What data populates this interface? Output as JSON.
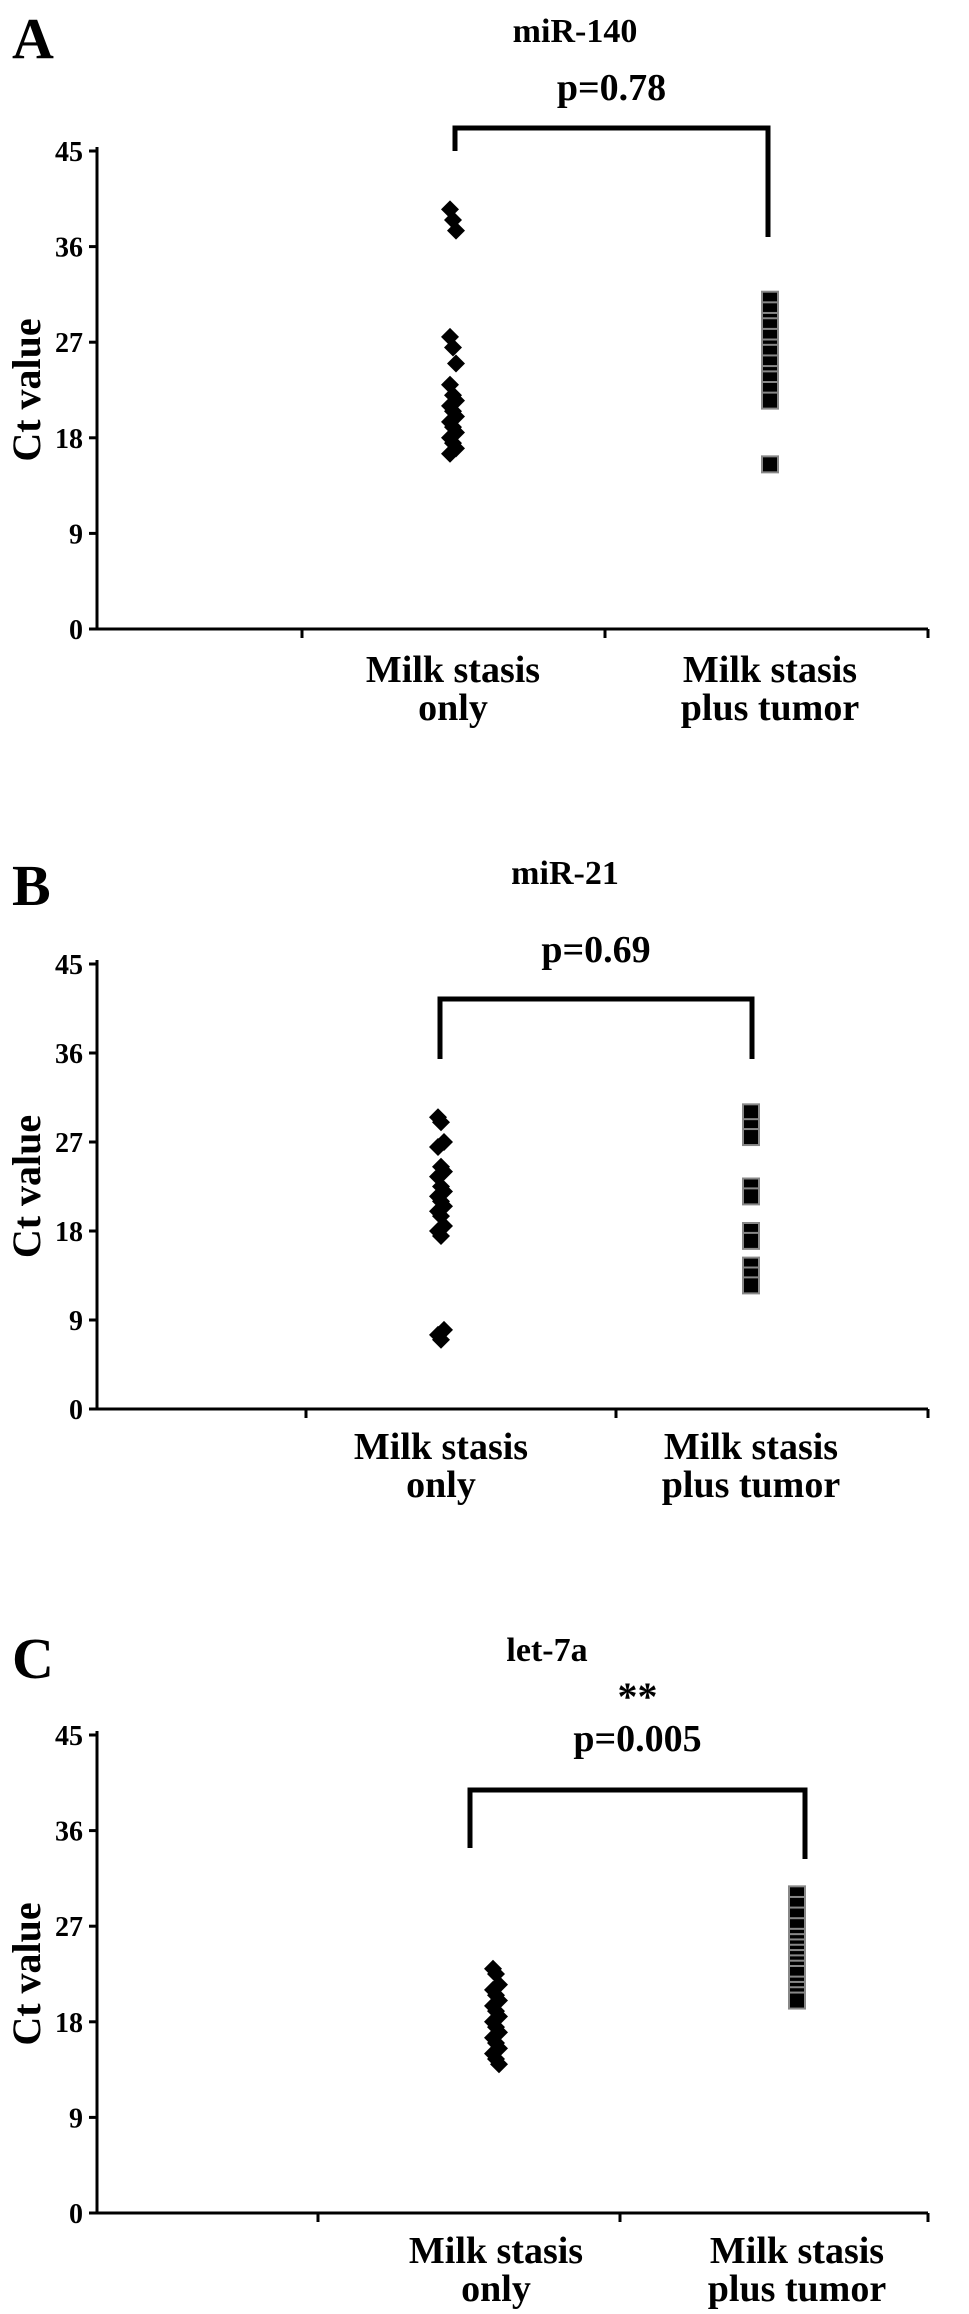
{
  "chart_data": [
    {
      "panel": "A",
      "type": "scatter",
      "title": "miR-140",
      "ylabel": "Ct value",
      "yticks": [
        "0",
        "9",
        "18",
        "27",
        "36",
        "45"
      ],
      "ylim": [
        0,
        45
      ],
      "categories": [
        [
          "Milk stasis",
          "only"
        ],
        [
          "Milk stasis",
          "plus tumor"
        ]
      ],
      "annotation": {
        "stars": "",
        "p": "p=0.78"
      },
      "series": [
        {
          "marker": "diamond",
          "values": [
            39.5,
            38.5,
            37.5,
            27.5,
            26.5,
            25,
            23,
            22,
            21.5,
            21,
            20.5,
            20,
            19.5,
            19,
            18.5,
            18,
            17.5,
            17,
            16.5
          ]
        },
        {
          "marker": "square",
          "values": [
            31,
            30,
            29,
            28.5,
            27.5,
            26.5,
            26,
            25,
            24,
            23.5,
            22.5,
            21.5,
            15.5
          ]
        }
      ]
    },
    {
      "panel": "B",
      "type": "scatter",
      "title": "miR-21",
      "ylabel": "Ct value",
      "yticks": [
        "0",
        "9",
        "18",
        "27",
        "36",
        "45"
      ],
      "ylim": [
        0,
        45
      ],
      "categories": [
        [
          "Milk stasis",
          "only"
        ],
        [
          "Milk stasis",
          "plus tumor"
        ]
      ],
      "annotation": {
        "stars": "",
        "p": "p=0.69"
      },
      "series": [
        {
          "marker": "diamond",
          "values": [
            29.5,
            29,
            27,
            26.5,
            24.5,
            24,
            23.5,
            22.5,
            22,
            21.5,
            21,
            20.5,
            20,
            19.5,
            18.5,
            18,
            17.5,
            8,
            7.5,
            7
          ]
        },
        {
          "marker": "square",
          "values": [
            30,
            28.5,
            27.5,
            22.5,
            21.5,
            18,
            17,
            14.5,
            13.5,
            12.5
          ]
        }
      ]
    },
    {
      "panel": "C",
      "type": "scatter",
      "title": "let-7a",
      "ylabel": "Ct value",
      "yticks": [
        "0",
        "9",
        "18",
        "27",
        "36",
        "45"
      ],
      "ylim": [
        0,
        45
      ],
      "categories": [
        [
          "Milk stasis",
          "only"
        ],
        [
          "Milk stasis",
          "plus tumor"
        ]
      ],
      "annotation": {
        "stars": "**",
        "p": "p=0.005"
      },
      "series": [
        {
          "marker": "diamond",
          "values": [
            23,
            22.5,
            21.5,
            21,
            20.5,
            20,
            19.5,
            19,
            18.5,
            18,
            17.5,
            17,
            16.5,
            16,
            15.5,
            15,
            14.5,
            14
          ]
        },
        {
          "marker": "square",
          "values": [
            30,
            29,
            28,
            27,
            26,
            25.5,
            25,
            24.5,
            24,
            23.5,
            23,
            22.5,
            21.5,
            21,
            20.5,
            20
          ]
        }
      ]
    }
  ]
}
